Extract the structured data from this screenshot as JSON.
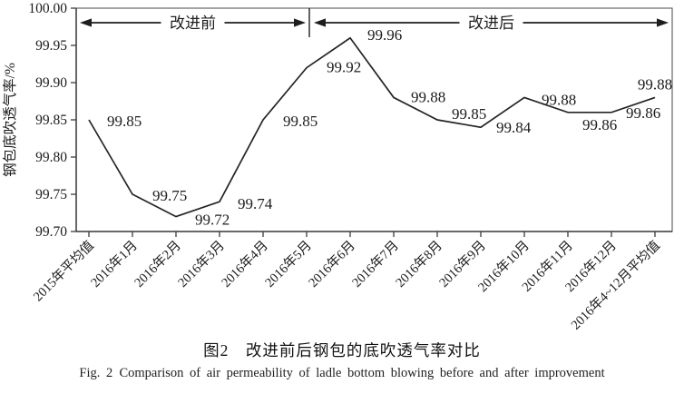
{
  "figure": {
    "caption_zh": "图2 改进前后钢包的底吹透气率对比",
    "caption_en": "Fig. 2 Comparison of air permeability of ladle bottom blowing before and after improvement"
  },
  "chart_data": {
    "type": "line",
    "title": "",
    "xlabel": "",
    "ylabel": "钢包底吹透气率/%",
    "ylim": [
      99.7,
      100.0
    ],
    "yticks": [
      "100.00",
      "99.95",
      "99.90",
      "99.85",
      "99.80",
      "99.75",
      "99.70"
    ],
    "grid": false,
    "legend": null,
    "categories": [
      "2015年平均值",
      "2016年1月",
      "2016年2月",
      "2016年3月",
      "2016年4月",
      "2016年5月",
      "2016年6月",
      "2016年7月",
      "2016年8月",
      "2016年9月",
      "2016年10月",
      "2016年11月",
      "2016年12月",
      "2016年4~12月平均值"
    ],
    "values": [
      99.85,
      99.75,
      99.72,
      99.74,
      99.85,
      99.92,
      99.96,
      99.88,
      99.85,
      99.84,
      99.88,
      99.86,
      99.86,
      99.88
    ],
    "annotations": [
      {
        "label": "改进前",
        "start_index": 0,
        "end_index": 5
      },
      {
        "label": "改进后",
        "start_index": 5,
        "end_index": 13
      }
    ],
    "separator_at_index": 5,
    "line_color": "#242424",
    "axis_color": "#3c3c3c",
    "border_color": "#5a5a5a",
    "text_color": "#1c1c1c"
  }
}
